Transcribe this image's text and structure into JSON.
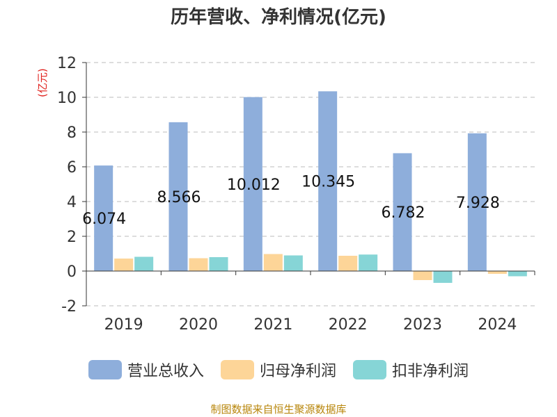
{
  "chart_data": {
    "type": "bar",
    "title": "历年营收、净利情况(亿元)",
    "unit_label": "(亿元)",
    "categories": [
      "2019",
      "2020",
      "2021",
      "2022",
      "2023",
      "2024"
    ],
    "series": [
      {
        "name": "营业总收入",
        "color": "#8eaedb",
        "values": [
          6.074,
          8.566,
          10.012,
          10.345,
          6.782,
          7.928
        ]
      },
      {
        "name": "归母净利润",
        "color": "#fdd598",
        "values": [
          0.72,
          0.74,
          0.98,
          0.88,
          -0.52,
          -0.16
        ]
      },
      {
        "name": "扣非净利润",
        "color": "#86d5d6",
        "values": [
          0.82,
          0.8,
          0.9,
          0.95,
          -0.68,
          -0.3
        ]
      }
    ],
    "data_labels": [
      "6.074",
      "8.566",
      "10.012",
      "10.345",
      "6.782",
      "7.928"
    ],
    "yticks": [
      "12",
      "10",
      "8",
      "6",
      "4",
      "2",
      "0",
      "-2"
    ],
    "ylim": [
      -2,
      12
    ],
    "grid": true,
    "legend_position": "bottom"
  },
  "source_note": "制图数据来自恒生聚源数据库"
}
